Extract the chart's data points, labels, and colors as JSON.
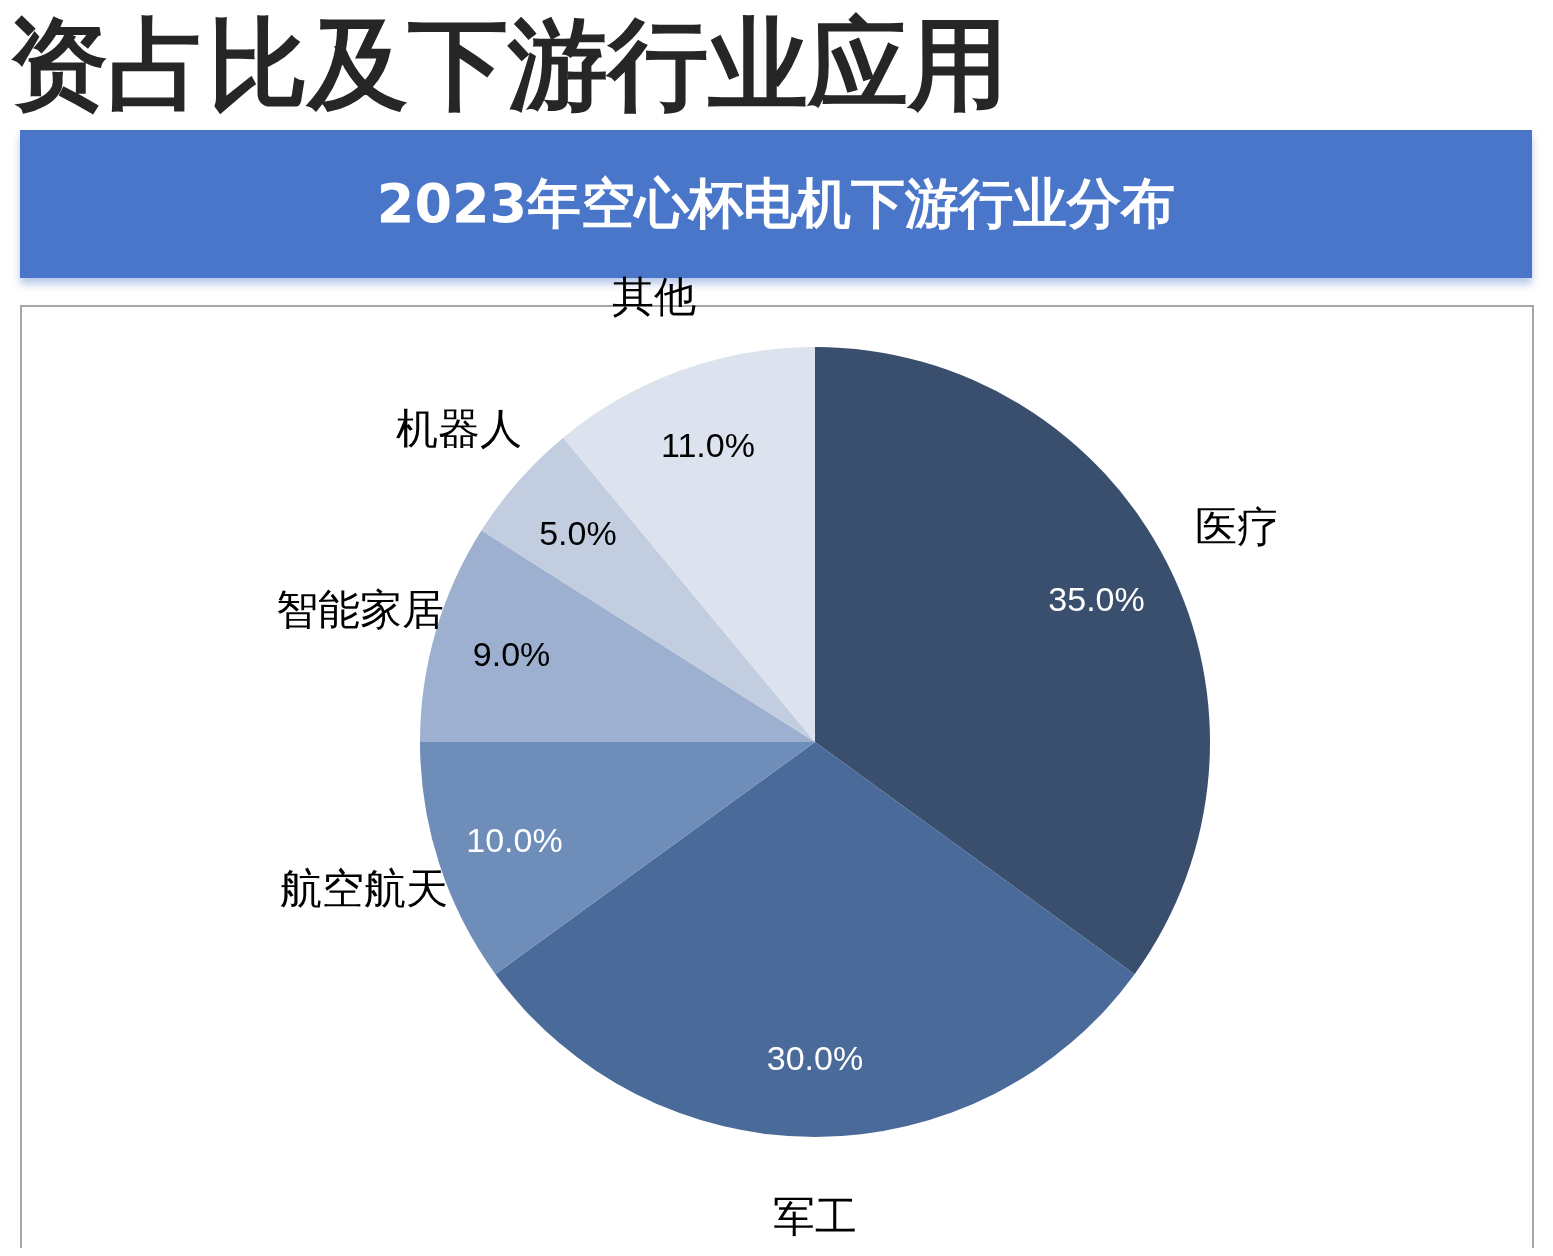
{
  "chart_data": {
    "type": "pie",
    "title": "资占比及下游行业应用",
    "subtitle": "2023年空心杯电机下游行业分布",
    "categories": [
      "医疗",
      "军工",
      "航空航天",
      "智能家居",
      "机器人",
      "其他"
    ],
    "values": [
      35,
      30,
      10,
      9,
      5,
      11
    ],
    "colors": [
      "#3a4e6e",
      "#4a6a99",
      "#6e8db9",
      "#9db0cf",
      "#c2cde0",
      "#dde3ee"
    ],
    "value_labels": [
      "35.0%",
      "30.0%",
      "10.0%",
      "9.0%",
      "5.0%",
      "11.0%"
    ],
    "legend": false
  }
}
